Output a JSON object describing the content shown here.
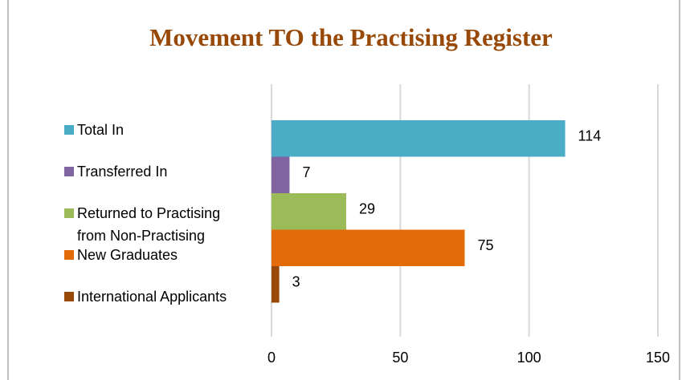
{
  "chart_data": {
    "type": "bar",
    "orientation": "horizontal",
    "title": "Movement TO the Practising Register",
    "categories": [
      "Total In",
      "Transferred In",
      "Returned to Practising from Non-Practising",
      "New Graduates",
      "International Applicants"
    ],
    "values": [
      114,
      7,
      29,
      75,
      3
    ],
    "colors": [
      "#4BACC6",
      "#8064A2",
      "#9BBB59",
      "#E36C09",
      "#984807"
    ],
    "xlim": [
      0,
      150
    ],
    "xticks": [
      0,
      50,
      100,
      150
    ],
    "grid": true,
    "legend": "left"
  }
}
